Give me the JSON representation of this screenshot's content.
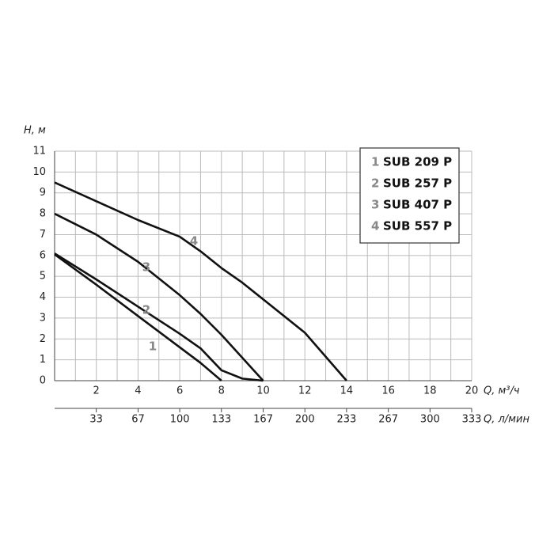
{
  "chart_data": {
    "type": "line",
    "y_label": "H, м",
    "x_label": "Q, м³/ч",
    "x2_label": "Q, л/мин",
    "x": [
      0,
      2,
      4,
      6,
      7,
      8,
      9,
      10,
      12,
      14
    ],
    "series": [
      {
        "name": "SUB 209 P",
        "label": "1",
        "color": "#111111",
        "values": [
          6.05,
          4.6,
          3.1,
          1.6,
          0.85,
          0,
          null,
          null,
          null,
          null
        ]
      },
      {
        "name": "SUB 257 P",
        "label": "2",
        "color": "#111111",
        "values": [
          6.1,
          4.85,
          3.55,
          2.25,
          1.55,
          0.5,
          0.1,
          0,
          null,
          null
        ]
      },
      {
        "name": "SUB 407 P",
        "label": "3",
        "color": "#111111",
        "values": [
          8,
          7.0,
          5.7,
          4.1,
          3.2,
          2.2,
          1.1,
          0,
          null,
          null
        ]
      },
      {
        "name": "SUB 557 P",
        "label": "4",
        "color": "#111111",
        "values": [
          9.5,
          8.6,
          7.7,
          6.9,
          6.2,
          5.4,
          4.7,
          3.9,
          2.3,
          0
        ]
      }
    ],
    "xlim": [
      0,
      20
    ],
    "xticks": [
      2,
      4,
      6,
      8,
      10,
      12,
      14,
      16,
      18,
      20
    ],
    "xminorticks": [
      1,
      3,
      5,
      7,
      9,
      11,
      13,
      15,
      17,
      19
    ],
    "ylim": [
      0,
      11
    ],
    "yticks": [
      0,
      1,
      2,
      3,
      4,
      5,
      6,
      7,
      8,
      9,
      10,
      11
    ],
    "x2lim": [
      0,
      333.3
    ],
    "x2ticks": [
      {
        "value": 33.3,
        "label": "33"
      },
      {
        "value": 66.7,
        "label": "67"
      },
      100,
      {
        "value": 133.3,
        "label": "133"
      },
      {
        "value": 166.7,
        "label": "167"
      },
      200,
      {
        "value": 233.3,
        "label": "233"
      },
      {
        "value": 266.7,
        "label": "267"
      },
      300,
      {
        "value": 333.3,
        "label": "333"
      }
    ],
    "grid": true,
    "legend": "top-right"
  }
}
